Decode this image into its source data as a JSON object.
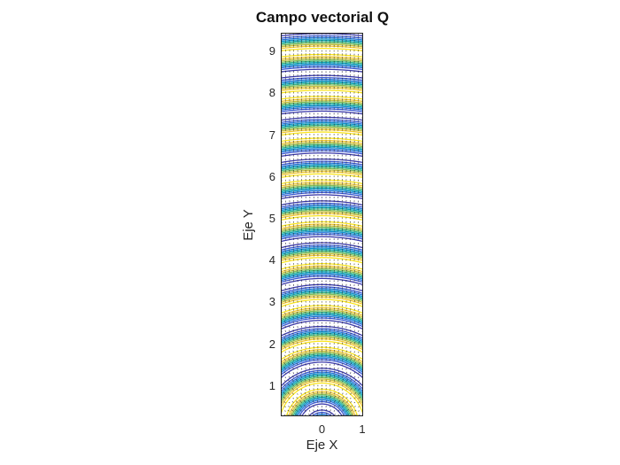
{
  "window": {
    "background": "#ffffff",
    "axis_color": "#262626",
    "title_color": "#111111"
  },
  "chart_data": {
    "type": "contour",
    "title": "Campo vectorial Q",
    "xlabel": "Eje X",
    "ylabel": "Eje Y",
    "x_range": [
      -1,
      1
    ],
    "y_range": [
      0.3,
      9.4248
    ],
    "x_ticks": [
      {
        "value": 0,
        "label": "0"
      },
      {
        "value": 1,
        "label": "1"
      }
    ],
    "y_ticks": [
      {
        "value": 1,
        "label": "1"
      },
      {
        "value": 2,
        "label": "2"
      },
      {
        "value": 3,
        "label": "3"
      },
      {
        "value": 4,
        "label": "4"
      },
      {
        "value": 5,
        "label": "5"
      },
      {
        "value": 6,
        "label": "6"
      },
      {
        "value": 7,
        "label": "7"
      },
      {
        "value": 8,
        "label": "8"
      },
      {
        "value": 9,
        "label": "9"
      }
    ],
    "field_function": "cos(2*pi*sqrt(x^2+y^2))",
    "contour_levels": [
      -0.9,
      -0.7,
      -0.5,
      -0.3,
      -0.1,
      0.1,
      0.3,
      0.5,
      0.7,
      0.9
    ],
    "colormap": "parula",
    "colormap_min_color": "#352a87",
    "colormap_max_color": "#f9fb0e",
    "grid": false,
    "legend": null,
    "overlay_quiver": {
      "type": "quiver",
      "grid_step_x": 0.1,
      "grid_step_y": 0.1,
      "direction": "radial-from-origin",
      "arrow_color": "#141414"
    }
  }
}
